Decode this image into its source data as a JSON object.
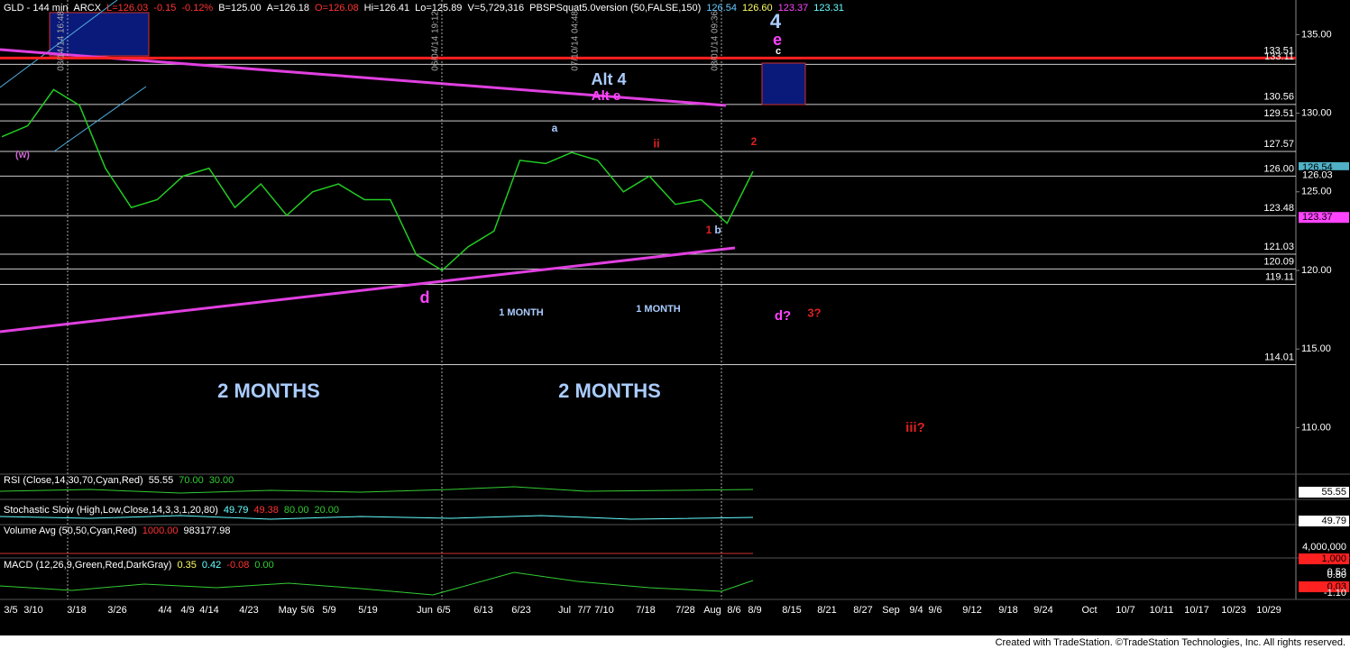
{
  "chart_data": {
    "type": "line",
    "header": [
      "GLD - 144 min",
      "ARCX",
      "L=126.03",
      "-0.15",
      "-0.12%",
      "B=125.00",
      "A=126.18",
      "O=126.08",
      "Hi=126.41",
      "Lo=125.89",
      "V=5,729,316",
      "PBSPSquat5.0version (50,FALSE,150)",
      "126.54",
      "126.60",
      "123.37",
      "123.31"
    ],
    "header_colors": [
      "#ffffff",
      "#ffffff",
      "#ff3333",
      "#ff3333",
      "#ff3333",
      "#ffffff",
      "#ffffff",
      "#ff3333",
      "#ffffff",
      "#ffffff",
      "#ffffff",
      "#ffffff",
      "#66ccff",
      "#ffff66",
      "#ff44ff",
      "#66ffff"
    ],
    "series": [
      {
        "color": "#22cc22",
        "values": [
          128.5,
          129.2,
          131.5,
          130.5,
          126.5,
          124,
          124.5,
          126,
          126.5,
          124,
          125.5,
          123.5,
          125,
          125.5,
          124.5,
          124.5,
          121,
          120,
          121.5,
          122.5,
          127,
          126.8,
          127.5,
          127,
          125,
          126,
          124.2,
          124.5,
          123,
          126.3
        ]
      }
    ],
    "ylim": [
      107.1,
      137.2
    ],
    "yticks": [
      {
        "value": 110,
        "label": "110.00"
      },
      {
        "value": 115,
        "label": "115.00"
      },
      {
        "value": 120,
        "label": "120.00"
      },
      {
        "value": 125,
        "label": "125.00"
      },
      {
        "value": 130,
        "label": "130.00"
      },
      {
        "value": 135,
        "label": "135.00"
      }
    ],
    "levels": [
      133.51,
      133.11,
      130.56,
      129.51,
      127.57,
      {
        "value": 126,
        "label": "126.00"
      },
      123.48,
      121.03,
      120.09,
      119.11,
      114.01
    ],
    "level_colors": [
      "#ff2020",
      "#cccccc",
      "#cccccc",
      "#cccccc",
      "#cccccc",
      "#cccccc",
      "#cccccc",
      "#cccccc",
      "#cccccc",
      "#cccccc",
      "#cccccc"
    ],
    "price_tags": [
      {
        "value": 126.54,
        "color": "#4fb0c6"
      },
      {
        "value": 126.03,
        "color": "#ffffff"
      },
      {
        "value": 123.37,
        "color": "#ff44ff"
      }
    ],
    "x_labels": [
      "3/5",
      "3/10",
      "3/18",
      "3/26",
      "4/4",
      "4/9",
      "4/14",
      "4/23",
      "May",
      "5/6",
      "5/9",
      "5/19",
      "Jun",
      "6/5",
      "6/13",
      "6/23",
      "Jul",
      "7/7",
      "7/10",
      "7/18",
      "7/28",
      "Aug",
      "8/6",
      "8/9",
      "8/15",
      "8/21",
      "8/27",
      "Sep",
      "9/4",
      "9/6",
      "9/12",
      "9/18",
      "9/24",
      "Oct",
      "10/7",
      "10/11",
      "10/17",
      "10/23",
      "10/29"
    ],
    "time_markers": [
      "03/14/14 16:48",
      "06/04/14 19:12",
      "07/10/14 04:48",
      "08/01/14 09:36"
    ],
    "annotations": [
      {
        "text": "4",
        "color": "#aaccff"
      },
      {
        "text": "e",
        "color": "#ff44ff"
      },
      {
        "text": "c",
        "color": "#ffffff"
      },
      {
        "text": "Alt 4",
        "color": "#aaccff"
      },
      {
        "text": "Alt e",
        "color": "#ff44ff"
      },
      {
        "text": "a",
        "color": "#aaccff"
      },
      {
        "text": "ii",
        "color": "#dd2020"
      },
      {
        "text": "2",
        "color": "#dd2020"
      },
      {
        "text": "1",
        "color": "#dd2020"
      },
      {
        "text": "b",
        "color": "#aaccff"
      },
      {
        "text": "d",
        "color": "#ff44ff"
      },
      {
        "text": "1 MONTH",
        "color": "#aaccff"
      },
      {
        "text": "1 MONTH",
        "color": "#aaccff"
      },
      {
        "text": "d?",
        "color": "#ff44ff"
      },
      {
        "text": "3?",
        "color": "#dd2020"
      },
      {
        "text": "2 MONTHS",
        "color": "#aaccff"
      },
      {
        "text": "2 MONTHS",
        "color": "#aaccff"
      },
      {
        "text": "iii?",
        "color": "#dd2020"
      },
      {
        "text": "(w)",
        "color": "#cc66cc"
      }
    ],
    "indicators": [
      {
        "parts": [
          "RSI (Close,14,30,70,Cyan,Red)",
          "55.55",
          "70.00",
          "30.00"
        ],
        "colors": [
          "#ffffff",
          "#ffffff",
          "#33cc33",
          "#33cc33"
        ],
        "axis": [
          "55.55"
        ]
      },
      {
        "parts": [
          "Stochastic Slow (High,Low,Close,14,3,3,1,20,80)",
          "49.79",
          "49.38",
          "80.00",
          "20.00"
        ],
        "colors": [
          "#ffffff",
          "#66ffff",
          "#ff3333",
          "#33cc33",
          "#33cc33"
        ],
        "axis": [
          "49.79"
        ]
      },
      {
        "parts": [
          "Volume Avg (50,50,Cyan,Red)",
          "1000.00",
          "983177.98"
        ],
        "colors": [
          "#ffffff",
          "#ff3333",
          "#ffffff"
        ],
        "axis": [
          "4,000,000",
          "1,000"
        ]
      },
      {
        "parts": [
          "MACD (12,26,9,Green,Red,DarkGray)",
          "0.35",
          "0.42",
          "-0.08",
          "0.00"
        ],
        "colors": [
          "#ffffff",
          "#ffff66",
          "#66ffff",
          "#ff3333",
          "#33cc33"
        ],
        "axis": [
          "0.53",
          "0.80",
          "0.03",
          "-1.10"
        ]
      }
    ],
    "footer": "Created with TradeStation. ©TradeStation Technologies, Inc. All rights reserved."
  }
}
